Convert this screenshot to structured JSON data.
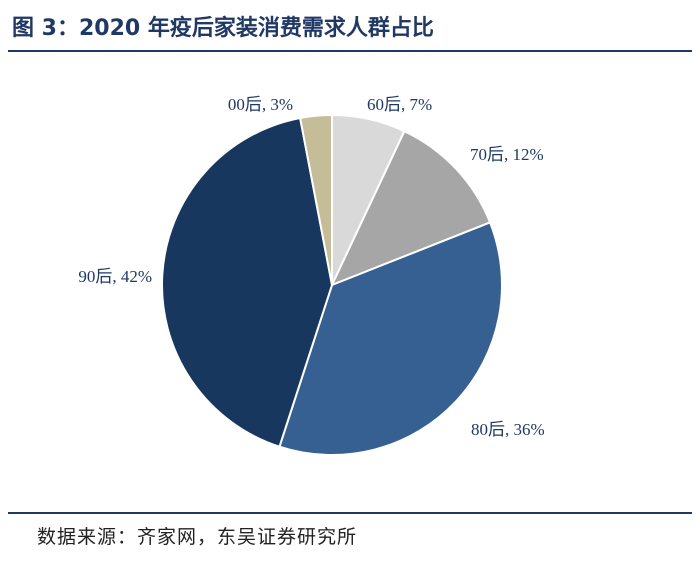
{
  "title": "图 3：2020 年疫后家装消费需求人群占比",
  "source": "数据来源：齐家网，东吴证券研究所",
  "chart_data": {
    "type": "pie",
    "title": "",
    "slices": [
      {
        "name": "60后",
        "value": 7,
        "label": "60后, 7%",
        "color": "#d9d9d9"
      },
      {
        "name": "70后",
        "value": 12,
        "label": "70后, 12%",
        "color": "#a6a6a6"
      },
      {
        "name": "80后",
        "value": 36,
        "label": "80后, 36%",
        "color": "#376092"
      },
      {
        "name": "90后",
        "value": 42,
        "label": "90后, 42%",
        "color": "#17375e"
      },
      {
        "name": "00后",
        "value": 3,
        "label": "00后, 3%",
        "color": "#c4bd97"
      }
    ],
    "start": "12 o'clock",
    "direction": "clockwise",
    "legend": "none"
  }
}
